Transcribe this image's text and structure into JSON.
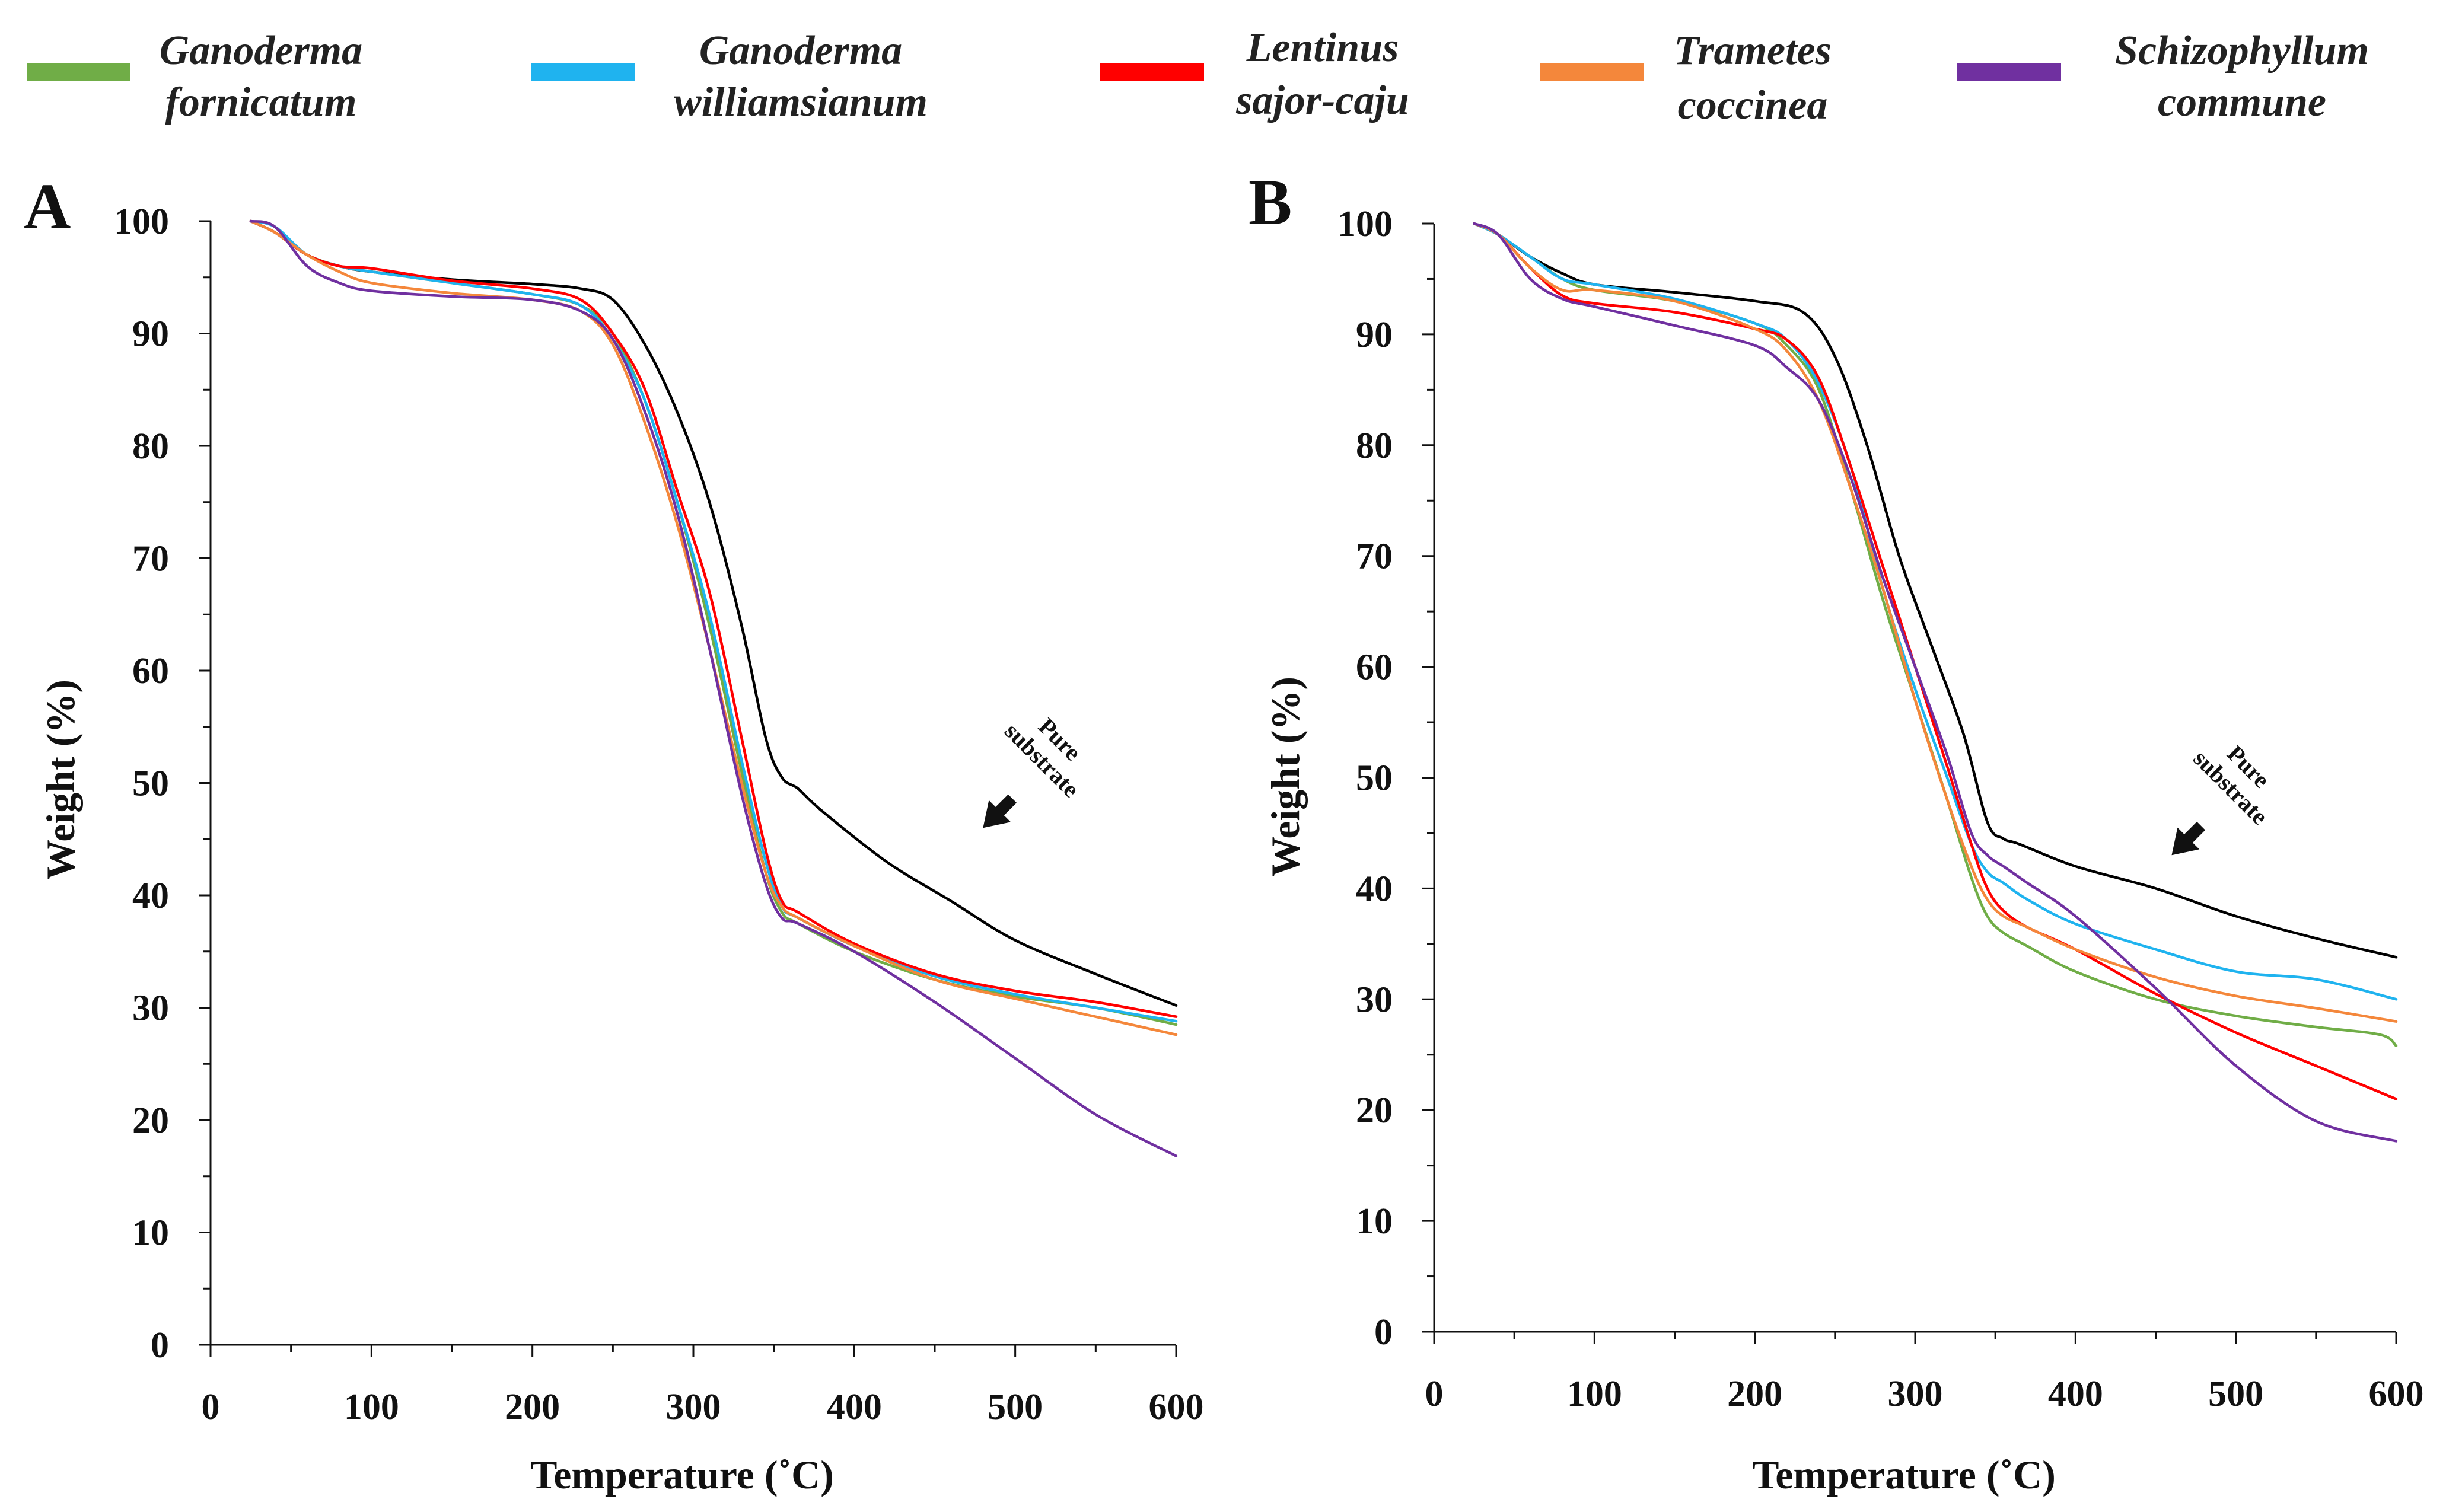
{
  "legend": [
    {
      "line1": "Ganoderma",
      "line2": "fornicatum",
      "color": "#70ad47"
    },
    {
      "line1": "Ganoderma",
      "line2": "williamsianum",
      "color": "#1fb3ef"
    },
    {
      "line1": "Lentinus",
      "line2": "sajor-caju",
      "color": "#ff0000"
    },
    {
      "line1": "Trametes",
      "line2": "coccinea",
      "color": "#f4873b"
    },
    {
      "line1": "Schizophyllum",
      "line2": "commune",
      "color": "#7030a0"
    }
  ],
  "chart_data": [
    {
      "type": "line",
      "panel": "A",
      "xlabel": "Temperature (˚C)",
      "ylabel": "Weight (%)",
      "xlim": [
        0,
        600
      ],
      "ylim": [
        0,
        100
      ],
      "xticks": [
        0,
        100,
        200,
        300,
        400,
        500,
        600
      ],
      "yticks": [
        0,
        10,
        20,
        30,
        40,
        50,
        60,
        70,
        80,
        90,
        100
      ],
      "annotation": {
        "line1": "Pure",
        "line2": "substrate",
        "x": 480,
        "y": 46
      },
      "series": [
        {
          "name": "Pure substrate",
          "color": "#000000",
          "x": [
            25,
            40,
            60,
            80,
            100,
            150,
            200,
            230,
            250,
            270,
            290,
            310,
            330,
            345,
            355,
            365,
            380,
            420,
            460,
            500,
            550,
            600
          ],
          "y": [
            100,
            99,
            97,
            96,
            95.5,
            94.8,
            94.4,
            94,
            93,
            89,
            83,
            75,
            64,
            54,
            50.5,
            49.5,
            47.5,
            43,
            39.5,
            36,
            33,
            30.2
          ]
        },
        {
          "name": "Ganoderma fornicatum",
          "color": "#70ad47",
          "x": [
            25,
            40,
            60,
            80,
            100,
            150,
            200,
            230,
            250,
            270,
            290,
            310,
            330,
            345,
            355,
            365,
            400,
            450,
            500,
            550,
            600
          ],
          "y": [
            100,
            99,
            97,
            96,
            95.5,
            94.5,
            93.5,
            92.5,
            90,
            84,
            75,
            64,
            51,
            42,
            38.5,
            37.5,
            35,
            32.5,
            31,
            30,
            28.5
          ]
        },
        {
          "name": "Ganoderma williamsianum",
          "color": "#1fb3ef",
          "x": [
            25,
            40,
            60,
            80,
            100,
            150,
            200,
            230,
            250,
            270,
            290,
            310,
            330,
            345,
            355,
            365,
            400,
            450,
            500,
            550,
            600
          ],
          "y": [
            100,
            99.5,
            97,
            96,
            95.5,
            94.5,
            93.5,
            92.5,
            89.5,
            84,
            75,
            65,
            52,
            43,
            39,
            38,
            35.5,
            32.8,
            31.2,
            30,
            28.8
          ]
        },
        {
          "name": "Lentinus sajor-caju",
          "color": "#ff0000",
          "x": [
            25,
            40,
            60,
            80,
            100,
            150,
            200,
            230,
            250,
            270,
            290,
            310,
            330,
            345,
            355,
            365,
            400,
            450,
            500,
            550,
            600
          ],
          "y": [
            100,
            99,
            97,
            96,
            95.8,
            94.7,
            94,
            93,
            90,
            85,
            76,
            67,
            54,
            44,
            39.5,
            38.5,
            35.7,
            33,
            31.5,
            30.5,
            29.2
          ]
        },
        {
          "name": "Trametes coccinea",
          "color": "#f4873b",
          "x": [
            25,
            40,
            60,
            80,
            100,
            150,
            200,
            230,
            250,
            270,
            290,
            310,
            330,
            345,
            355,
            365,
            400,
            450,
            500,
            550,
            600
          ],
          "y": [
            100,
            99,
            97,
            95.5,
            94.5,
            93.6,
            93,
            92,
            89,
            82,
            73,
            62,
            50,
            42,
            39,
            38,
            35.5,
            32.5,
            30.8,
            29.2,
            27.6
          ]
        },
        {
          "name": "Schizophyllum commune",
          "color": "#7030a0",
          "x": [
            25,
            40,
            60,
            80,
            100,
            150,
            200,
            230,
            250,
            270,
            290,
            310,
            330,
            345,
            355,
            365,
            400,
            450,
            500,
            550,
            600
          ],
          "y": [
            100,
            99.5,
            96,
            94.5,
            93.8,
            93.3,
            93,
            92,
            89.5,
            83,
            74,
            62,
            49,
            41,
            38,
            37.5,
            35,
            30.5,
            25.5,
            20.5,
            16.8
          ]
        }
      ]
    },
    {
      "type": "line",
      "panel": "B",
      "xlabel": "Temperature (˚C)",
      "ylabel": "Weight (%)",
      "xlim": [
        0,
        600
      ],
      "ylim": [
        0,
        100
      ],
      "xticks": [
        0,
        100,
        200,
        300,
        400,
        500,
        600
      ],
      "yticks": [
        0,
        10,
        20,
        30,
        40,
        50,
        60,
        70,
        80,
        90,
        100
      ],
      "annotation": {
        "line1": "Pure",
        "line2": "substrate",
        "x": 460,
        "y": 43
      },
      "series": [
        {
          "name": "Pure substrate",
          "color": "#000000",
          "x": [
            25,
            40,
            60,
            80,
            100,
            150,
            200,
            230,
            250,
            270,
            290,
            310,
            330,
            345,
            355,
            365,
            400,
            450,
            500,
            550,
            600
          ],
          "y": [
            100,
            99,
            97,
            95.5,
            94.5,
            93.8,
            93,
            92,
            88,
            80,
            70,
            62,
            54,
            46,
            44.5,
            44,
            42,
            40,
            37.5,
            35.5,
            33.8
          ]
        },
        {
          "name": "Ganoderma fornicatum",
          "color": "#70ad47",
          "x": [
            25,
            40,
            60,
            80,
            100,
            150,
            200,
            220,
            240,
            260,
            280,
            300,
            320,
            335,
            345,
            355,
            370,
            400,
            450,
            500,
            550,
            590,
            600
          ],
          "y": [
            100,
            99,
            97,
            95,
            94,
            93,
            91,
            89,
            85,
            76,
            66,
            57,
            48,
            41,
            37.5,
            36,
            34.8,
            32.5,
            30,
            28.5,
            27.5,
            26.8,
            25.8
          ]
        },
        {
          "name": "Ganoderma williamsianum",
          "color": "#1fb3ef",
          "x": [
            25,
            40,
            60,
            80,
            100,
            150,
            200,
            220,
            240,
            260,
            280,
            300,
            320,
            335,
            345,
            355,
            370,
            400,
            450,
            500,
            550,
            600
          ],
          "y": [
            100,
            99,
            97,
            95,
            94.5,
            93.2,
            91,
            89.5,
            85.5,
            78,
            67,
            58,
            50,
            44,
            41.5,
            40.5,
            39,
            36.8,
            34.5,
            32.5,
            31.8,
            30
          ]
        },
        {
          "name": "Lentinus sajor-caju",
          "color": "#ff0000",
          "x": [
            25,
            40,
            60,
            80,
            100,
            150,
            200,
            220,
            240,
            260,
            280,
            300,
            320,
            335,
            345,
            355,
            370,
            400,
            450,
            500,
            550,
            600
          ],
          "y": [
            100,
            99,
            96,
            93.5,
            92.8,
            92,
            90.5,
            89.5,
            86,
            78,
            69,
            60,
            51,
            44,
            40,
            38,
            36.5,
            34.5,
            30.5,
            27,
            24,
            21
          ]
        },
        {
          "name": "Trametes coccinea",
          "color": "#f4873b",
          "x": [
            25,
            40,
            60,
            80,
            100,
            150,
            200,
            220,
            240,
            260,
            280,
            300,
            320,
            335,
            345,
            355,
            370,
            400,
            450,
            500,
            550,
            600
          ],
          "y": [
            100,
            99,
            96,
            94,
            94,
            93,
            90.5,
            88.5,
            84,
            76,
            67,
            57,
            48,
            42,
            39,
            37.5,
            36.5,
            34.5,
            32,
            30.3,
            29.2,
            28
          ]
        },
        {
          "name": "Schizophyllum commune",
          "color": "#7030a0",
          "x": [
            25,
            40,
            60,
            80,
            100,
            150,
            200,
            220,
            240,
            260,
            280,
            300,
            320,
            335,
            345,
            355,
            370,
            400,
            450,
            500,
            550,
            600
          ],
          "y": [
            100,
            99,
            95,
            93.2,
            92.5,
            90.8,
            89,
            87,
            84,
            77,
            68,
            60,
            52,
            45,
            43,
            42,
            40.5,
            37.5,
            31,
            24,
            19,
            17.2
          ]
        }
      ]
    }
  ]
}
